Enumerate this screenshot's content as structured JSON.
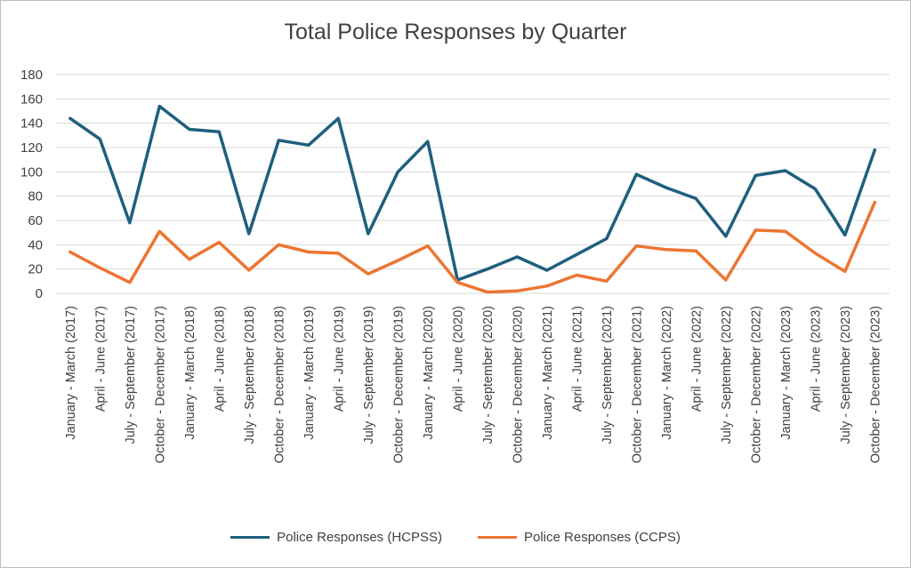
{
  "chart_data": {
    "type": "line",
    "title": "Total Police Responses by Quarter",
    "xlabel": "",
    "ylabel": "",
    "ylim": [
      0,
      180
    ],
    "yticks": [
      0,
      20,
      40,
      60,
      80,
      100,
      120,
      140,
      160,
      180
    ],
    "grid": true,
    "legend_position": "bottom",
    "categories": [
      "January - March (2017)",
      "April - June (2017)",
      "July - September (2017)",
      "October - December (2017)",
      "January - March (2018)",
      "April - June (2018)",
      "July - September (2018)",
      "October - December (2018)",
      "January - March (2019)",
      "April - June (2019)",
      "July - September (2019)",
      "October - December (2019)",
      "January - March (2020)",
      "April - June (2020)",
      "July - September (2020)",
      "October - December (2020)",
      "January - March (2021)",
      "April - June (2021)",
      "July - September (2021)",
      "October - December (2021)",
      "January - March (2022)",
      "April - June (2022)",
      "July - September (2022)",
      "October - December (2022)",
      "January - March (2023)",
      "April - June (2023)",
      "July - September (2023)",
      "October - December (2023)"
    ],
    "series": [
      {
        "name": "Police Responses (HCPSS)",
        "color": "#1f5f7f",
        "values": [
          144,
          127,
          58,
          154,
          135,
          133,
          49,
          126,
          122,
          144,
          49,
          100,
          125,
          11,
          20,
          30,
          19,
          32,
          45,
          98,
          87,
          78,
          47,
          97,
          101,
          86,
          48,
          118
        ]
      },
      {
        "name": "Police Responses (CCPS)",
        "color": "#ec7532",
        "values": [
          34,
          21,
          9,
          51,
          28,
          42,
          19,
          40,
          34,
          33,
          16,
          27,
          39,
          9,
          1,
          2,
          6,
          15,
          10,
          39,
          36,
          35,
          11,
          52,
          51,
          33,
          18,
          75
        ]
      }
    ]
  }
}
